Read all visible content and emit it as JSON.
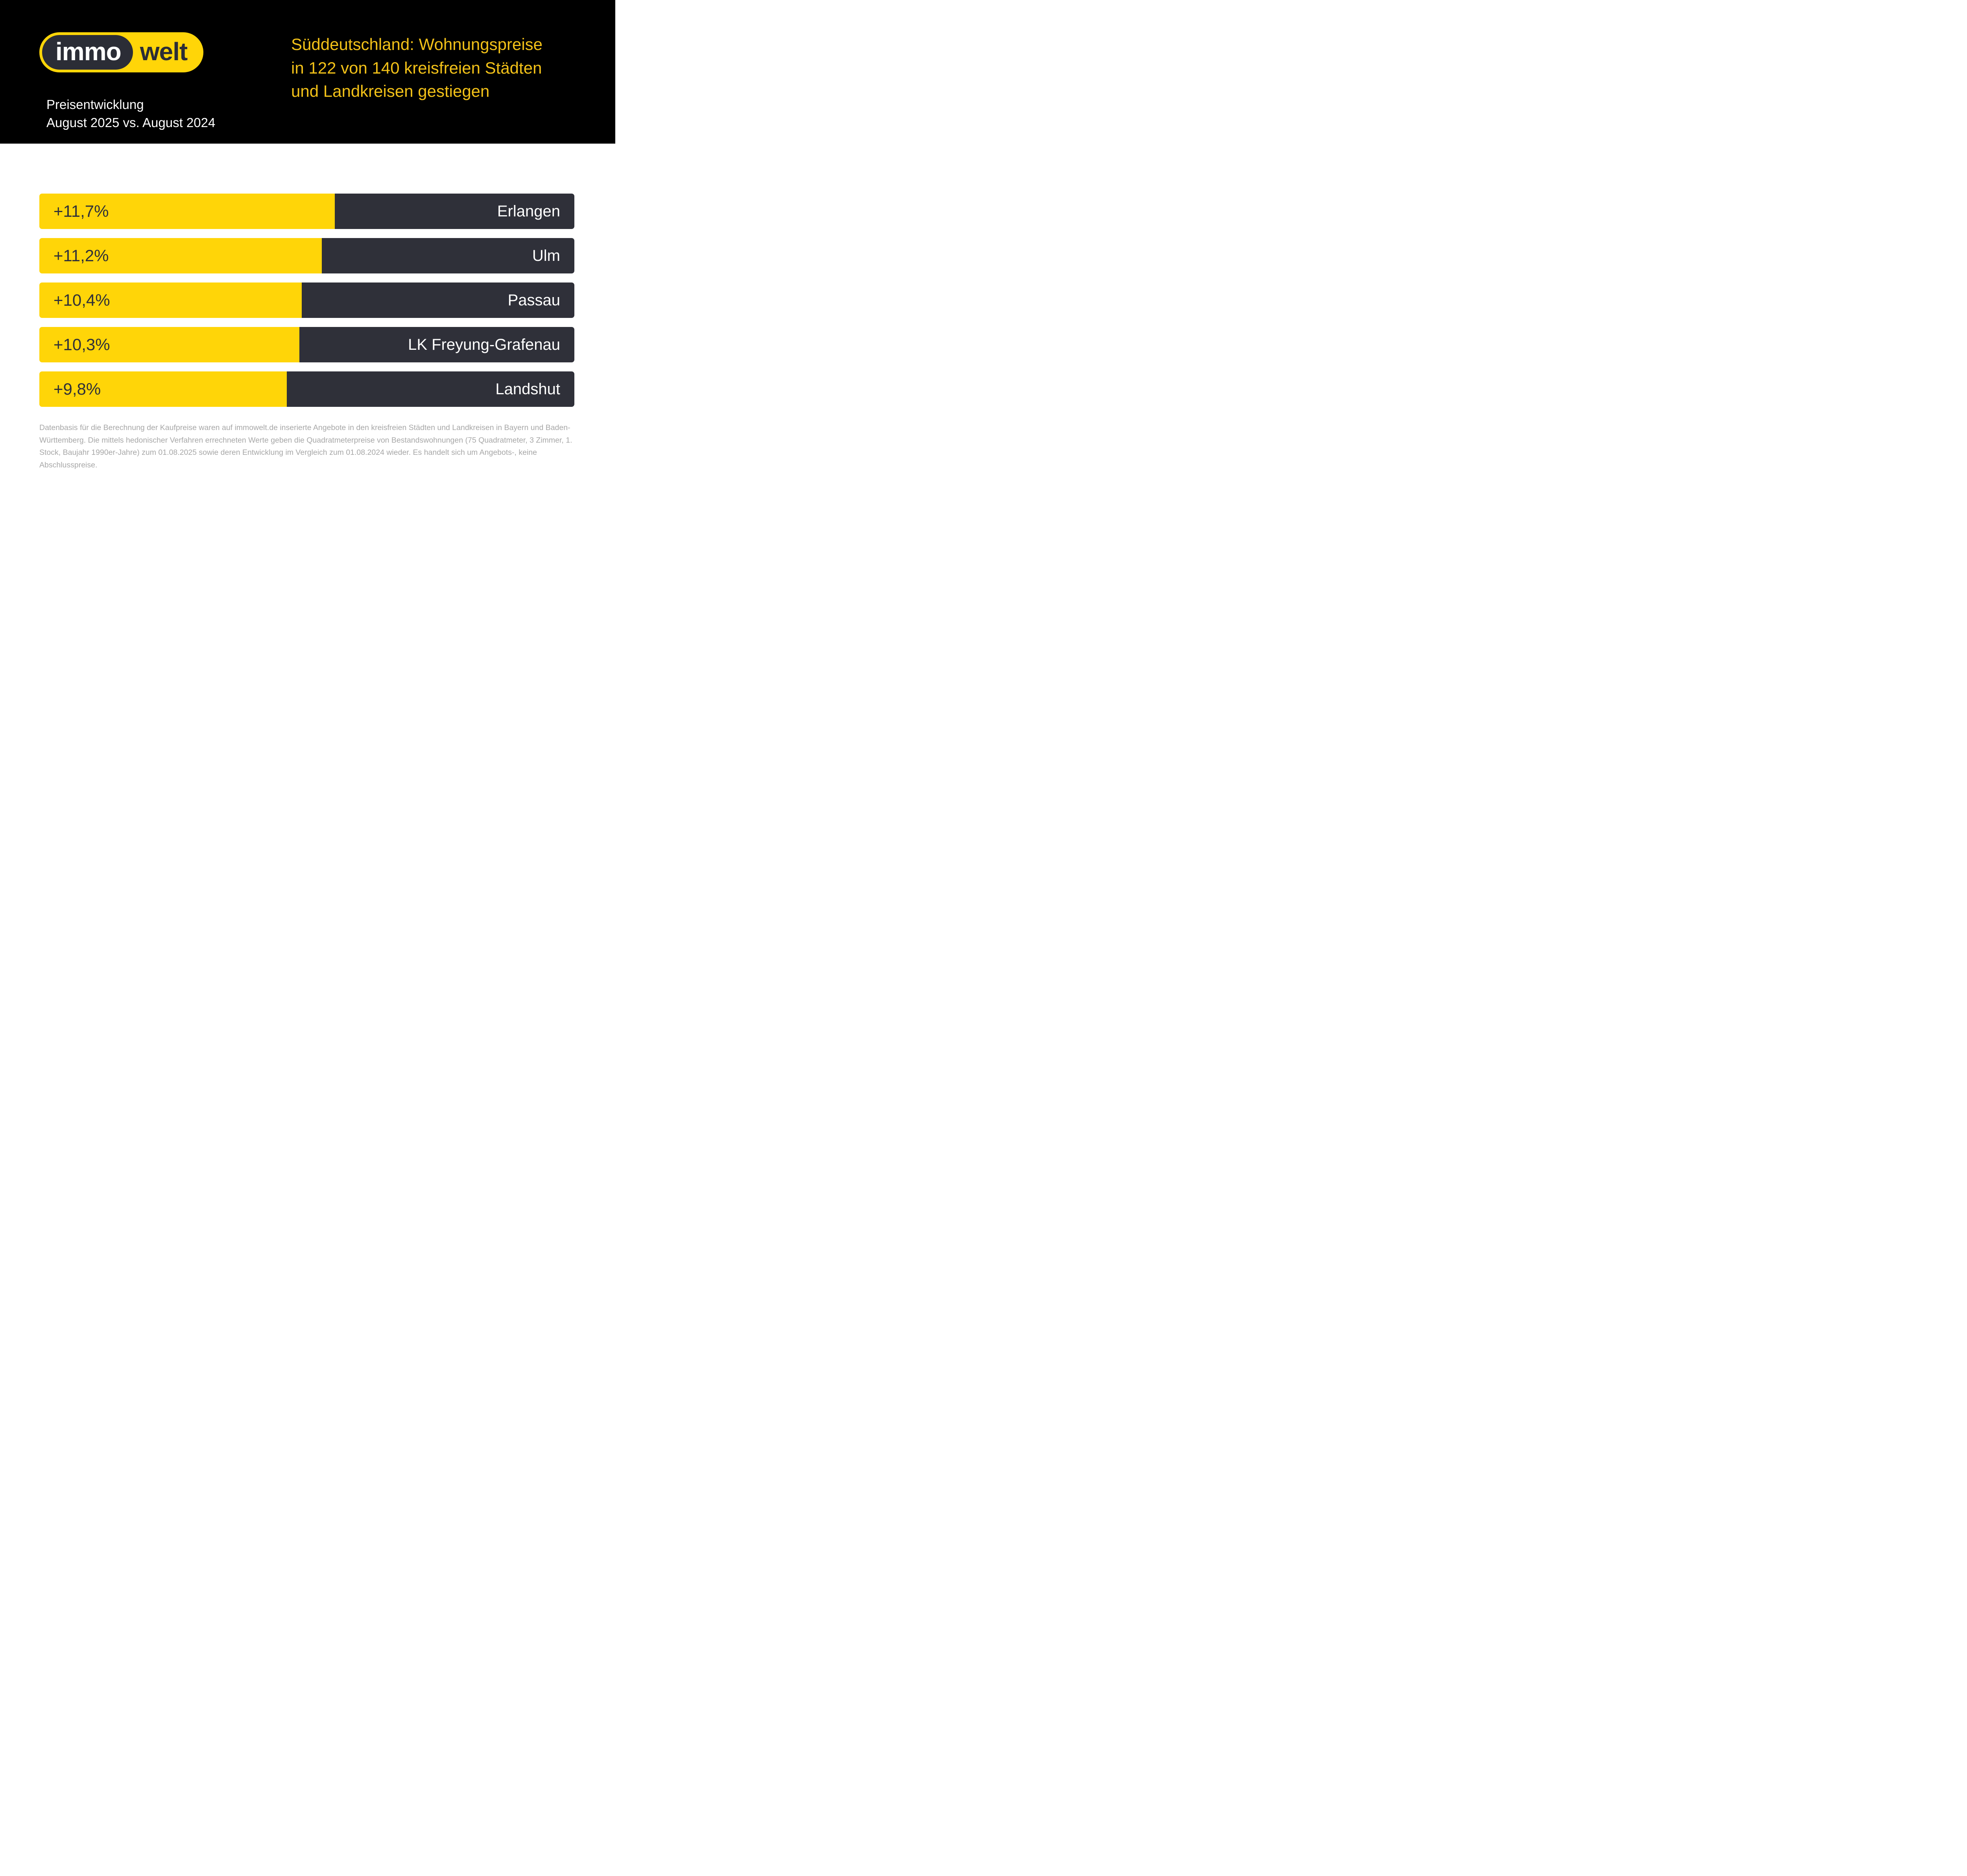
{
  "header": {
    "logo": {
      "part1": "immo",
      "part2": "welt"
    },
    "subtitle_line1": "Preisentwicklung",
    "subtitle_line2": "August 2025 vs. August 2024",
    "title_line1": "Süddeutschland: Wohnungspreise",
    "title_line2": "in 122 von 140 kreisfreien Städten",
    "title_line3": "und Landkreisen gestiegen"
  },
  "chart_data": {
    "type": "bar",
    "orientation": "horizontal",
    "title": "Preisentwicklung August 2025 vs. August 2024",
    "categories": [
      "Erlangen",
      "Ulm",
      "Passau",
      "LK Freyung-Grafenau",
      "Landshut"
    ],
    "values": [
      11.7,
      11.2,
      10.4,
      10.3,
      9.8
    ],
    "value_labels": [
      "+11,7%",
      "+11,2%",
      "+10,4%",
      "+10,3%",
      "+9,8%"
    ],
    "xlim": [
      0,
      21.2
    ],
    "grid": false,
    "legend": false,
    "colors": {
      "value_bar": "#FFD508",
      "city_bar": "#2F3039",
      "value_text": "#2F3039",
      "city_text": "#FFFFFF"
    }
  },
  "footer": {
    "disclaimer": "Datenbasis für die Berechnung der Kaufpreise waren auf immowelt.de inserierte Angebote in den kreisfreien Städten und Landkreisen in Bayern und Baden-Württemberg. Die mittels hedonischer Verfahren errechneten Werte geben die Quadratmeterpreise von Bestandswohnungen (75 Quadratmeter, 3 Zimmer, 1. Stock, Baujahr 1990er-Jahre) zum 01.08.2025 sowie deren Entwicklung im Vergleich zum 01.08.2024 wieder. Es handelt sich um Angebots-, keine Abschlusspreise."
  },
  "colors": {
    "header_background": "#000000",
    "headline_text": "#F2C118",
    "page_background": "#FFFFFF",
    "footer_text": "#A7A7A7"
  }
}
